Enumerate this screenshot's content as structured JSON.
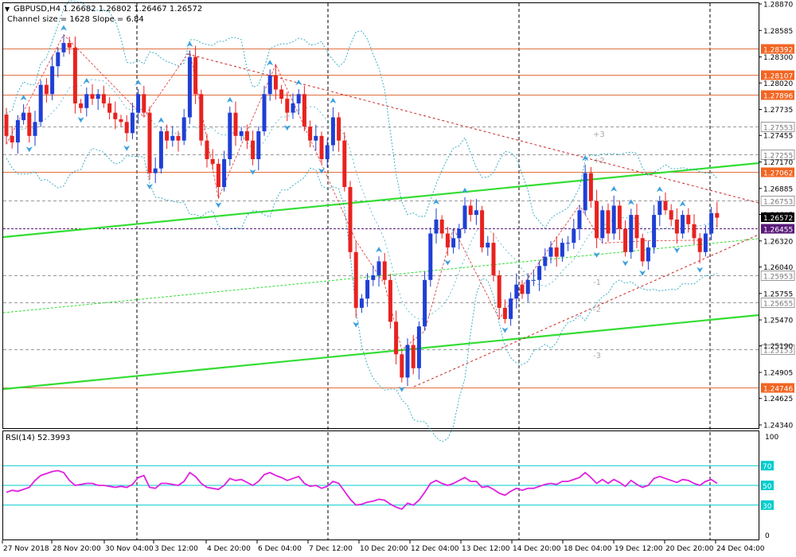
{
  "header": {
    "symbol_line": "GBPUSD,H4  1.26682 1.26802 1.26467 1.26572",
    "channel_line": "Channel size = 1628 Slope = 6.84"
  },
  "rsi_label": "RSI(14) 52.3993",
  "colors": {
    "bull": "#1f3fd6",
    "bear": "#e8221f",
    "channel": "#33dd33",
    "level_line": "#e07040",
    "level_label_bg": "#f26522",
    "bid_label_bg": "#000000",
    "ask_label_bg": "#5a1a7a",
    "rsi_line": "#e020e0",
    "rsi_levels": "#00cccc",
    "envelope": "#2aa8c0",
    "fractal": "#3aa0e0"
  },
  "chart_data": {
    "type": "candlestick",
    "symbol": "GBPUSD",
    "timeframe": "H4",
    "ohlc_header": {
      "open": 1.26682,
      "high": 1.26802,
      "low": 1.26467,
      "close": 1.26572
    },
    "ylim": [
      1.2434,
      1.2887
    ],
    "price_ticks": [
      "1.28870",
      "1.28585",
      "1.28300",
      "1.28020",
      "1.27735",
      "1.27455",
      "1.27170",
      "1.26885",
      "1.26605",
      "1.26320",
      "1.26040",
      "1.25755",
      "1.25470",
      "1.25190",
      "1.24905",
      "1.24625",
      "1.24340"
    ],
    "x_labels": [
      "27 Nov 2018",
      "28 Nov 20:00",
      "30 Nov 04:00",
      "3 Dec 12:00",
      "4 Dec 20:00",
      "6 Dec 04:00",
      "7 Dec 12:00",
      "10 Dec 20:00",
      "12 Dec 04:00",
      "13 Dec 12:00",
      "14 Dec 20:00",
      "18 Dec 04:00",
      "19 Dec 12:00",
      "20 Dec 20:00",
      "24 Dec 04:00"
    ],
    "horizontal_levels": [
      {
        "price": 1.28392,
        "label": "1.28392",
        "style": "solid"
      },
      {
        "price": 1.28107,
        "label": "1.28107",
        "style": "solid"
      },
      {
        "price": 1.27896,
        "label": "1.27896",
        "style": "solid"
      },
      {
        "price": 1.27553,
        "label": "1.27553",
        "style": "dashed"
      },
      {
        "price": 1.27255,
        "label": "1.27255",
        "style": "dashed"
      },
      {
        "price": 1.27062,
        "label": "1.27062",
        "style": "solid"
      },
      {
        "price": 1.26753,
        "label": "1.26753",
        "style": "dashed"
      },
      {
        "price": 1.25953,
        "label": "1.25953",
        "style": "dashed"
      },
      {
        "price": 1.25655,
        "label": "1.25655",
        "style": "dashed"
      },
      {
        "price": 1.25153,
        "label": "1.25153",
        "style": "dashed"
      },
      {
        "price": 1.24746,
        "label": "1.24746",
        "style": "solid"
      }
    ],
    "current_price": {
      "price": 1.26572,
      "label": "1.26572"
    },
    "ask_price": {
      "price": 1.26455,
      "label": "1.26455"
    },
    "channel_labels": [
      "+3",
      "+2",
      "-1",
      "-2",
      "-3"
    ],
    "closes": [
      1.2745,
      1.2738,
      1.2762,
      1.277,
      1.2745,
      1.276,
      1.28,
      1.279,
      1.282,
      1.2835,
      1.2845,
      1.284,
      1.278,
      1.2775,
      1.279,
      1.2785,
      1.279,
      1.278,
      1.277,
      1.2763,
      1.276,
      1.2748,
      1.277,
      1.279,
      1.277,
      1.2705,
      1.271,
      1.275,
      1.274,
      1.2745,
      1.274,
      1.2765,
      1.283,
      1.279,
      1.274,
      1.272,
      1.2715,
      1.269,
      1.272,
      1.277,
      1.2745,
      1.275,
      1.274,
      1.272,
      1.275,
      1.279,
      1.281,
      1.2795,
      1.2785,
      1.277,
      1.278,
      1.279,
      1.2755,
      1.274,
      1.2745,
      1.272,
      1.2735,
      1.2765,
      1.274,
      1.269,
      1.262,
      1.256,
      1.257,
      1.259,
      1.2595,
      1.261,
      1.259,
      1.2545,
      1.251,
      1.2485,
      1.252,
      1.2495,
      1.254,
      1.259,
      1.264,
      1.2655,
      1.264,
      1.2625,
      1.2635,
      1.2645,
      1.267,
      1.266,
      1.2665,
      1.2625,
      1.263,
      1.2595,
      1.256,
      1.2548,
      1.257,
      1.2585,
      1.2575,
      1.259,
      1.259,
      1.2605,
      1.2615,
      1.2625,
      1.2615,
      1.263,
      1.263,
      1.2645,
      1.2665,
      1.2705,
      1.2675,
      1.2635,
      1.2665,
      1.264,
      1.267,
      1.2645,
      1.262,
      1.266,
      1.2635,
      1.261,
      1.2625,
      1.266,
      1.2675,
      1.2665,
      1.2655,
      1.264,
      1.266,
      1.265,
      1.2635,
      1.262,
      1.264,
      1.2662,
      1.2657
    ],
    "rsi": {
      "period": 14,
      "value": 52.3993,
      "ylim": [
        0,
        100
      ],
      "ticks": [
        "100",
        "70",
        "50",
        "30",
        "0"
      ],
      "levels": [
        70,
        50,
        30
      ],
      "values": [
        43,
        45,
        44,
        46,
        48,
        55,
        60,
        62,
        64,
        65,
        63,
        55,
        50,
        51,
        52,
        52,
        50,
        50,
        49,
        48,
        49,
        48,
        51,
        58,
        60,
        48,
        47,
        52,
        52,
        51,
        50,
        54,
        63,
        59,
        52,
        48,
        47,
        46,
        50,
        57,
        55,
        56,
        53,
        50,
        54,
        61,
        63,
        60,
        58,
        55,
        57,
        59,
        52,
        49,
        50,
        47,
        49,
        54,
        52,
        44,
        36,
        30,
        31,
        33,
        34,
        36,
        35,
        31,
        28,
        26,
        32,
        30,
        35,
        43,
        52,
        55,
        52,
        50,
        52,
        55,
        58,
        54,
        54,
        48,
        49,
        46,
        42,
        40,
        44,
        47,
        45,
        47,
        47,
        49,
        51,
        52,
        51,
        54,
        54,
        56,
        58,
        63,
        58,
        52,
        56,
        52,
        56,
        53,
        49,
        55,
        51,
        48,
        50,
        57,
        59,
        57,
        55,
        53,
        56,
        55,
        52,
        50,
        54,
        56,
        52
      ]
    }
  }
}
